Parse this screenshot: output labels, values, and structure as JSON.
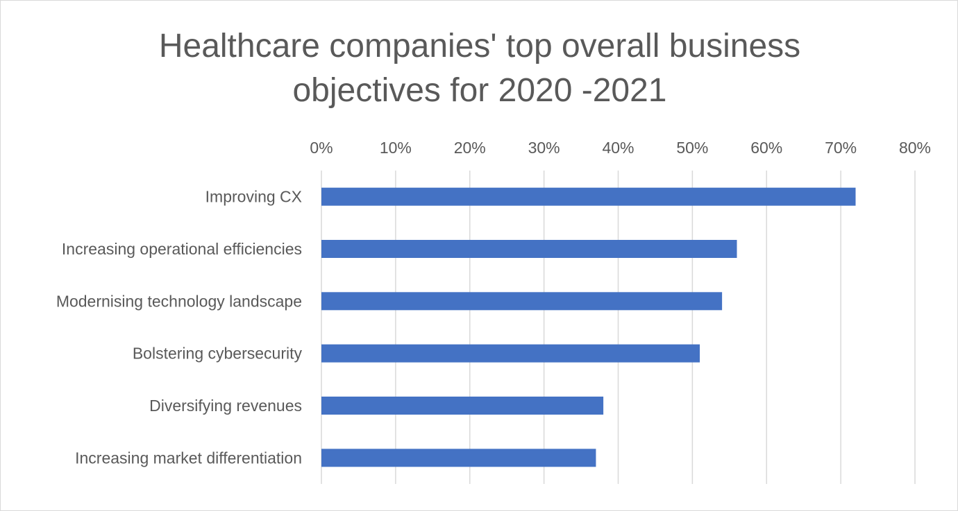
{
  "chart_data": {
    "type": "bar",
    "orientation": "horizontal",
    "title_lines": [
      "Healthcare companies' top overall business",
      "objectives for 2020 -2021"
    ],
    "categories": [
      "Improving CX",
      "Increasing operational efficiencies",
      "Modernising technology landscape",
      "Bolstering cybersecurity",
      "Diversifying revenues",
      "Increasing market differentiation"
    ],
    "values": [
      72,
      56,
      54,
      51,
      38,
      37
    ],
    "x_ticks": [
      "0%",
      "10%",
      "20%",
      "30%",
      "40%",
      "50%",
      "60%",
      "70%",
      "80%"
    ],
    "xlim": [
      0,
      80
    ],
    "value_unit": "%",
    "x_axis_position": "top",
    "gridlines": true,
    "legend": "none",
    "bar_color": "#4472c4",
    "grid_color": "#d9d9d9",
    "text_color": "#595959"
  }
}
